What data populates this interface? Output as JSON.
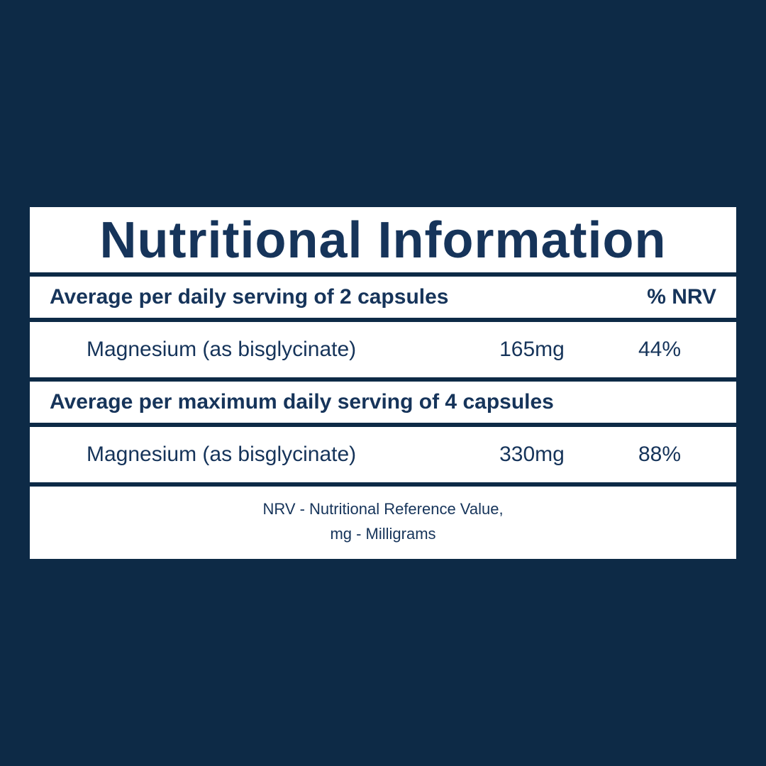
{
  "colors": {
    "background": "#0d2a46",
    "row_background": "#ffffff",
    "text": "#16345a",
    "divider": "#0d2a46"
  },
  "title": "Nutritional Information",
  "sections": [
    {
      "heading_left": "Average per daily serving of 2 capsules",
      "heading_right": "% NRV",
      "row": {
        "name": "Magnesium (as bisglycinate)",
        "amount": "165mg",
        "nrv": "44%"
      }
    },
    {
      "heading_left": "Average per maximum daily serving of 4 capsules",
      "heading_right": "",
      "row": {
        "name": "Magnesium (as bisglycinate)",
        "amount": "330mg",
        "nrv": "88%"
      }
    }
  ],
  "footnote_line1": "NRV - Nutritional Reference Value,",
  "footnote_line2": "mg - Milligrams"
}
